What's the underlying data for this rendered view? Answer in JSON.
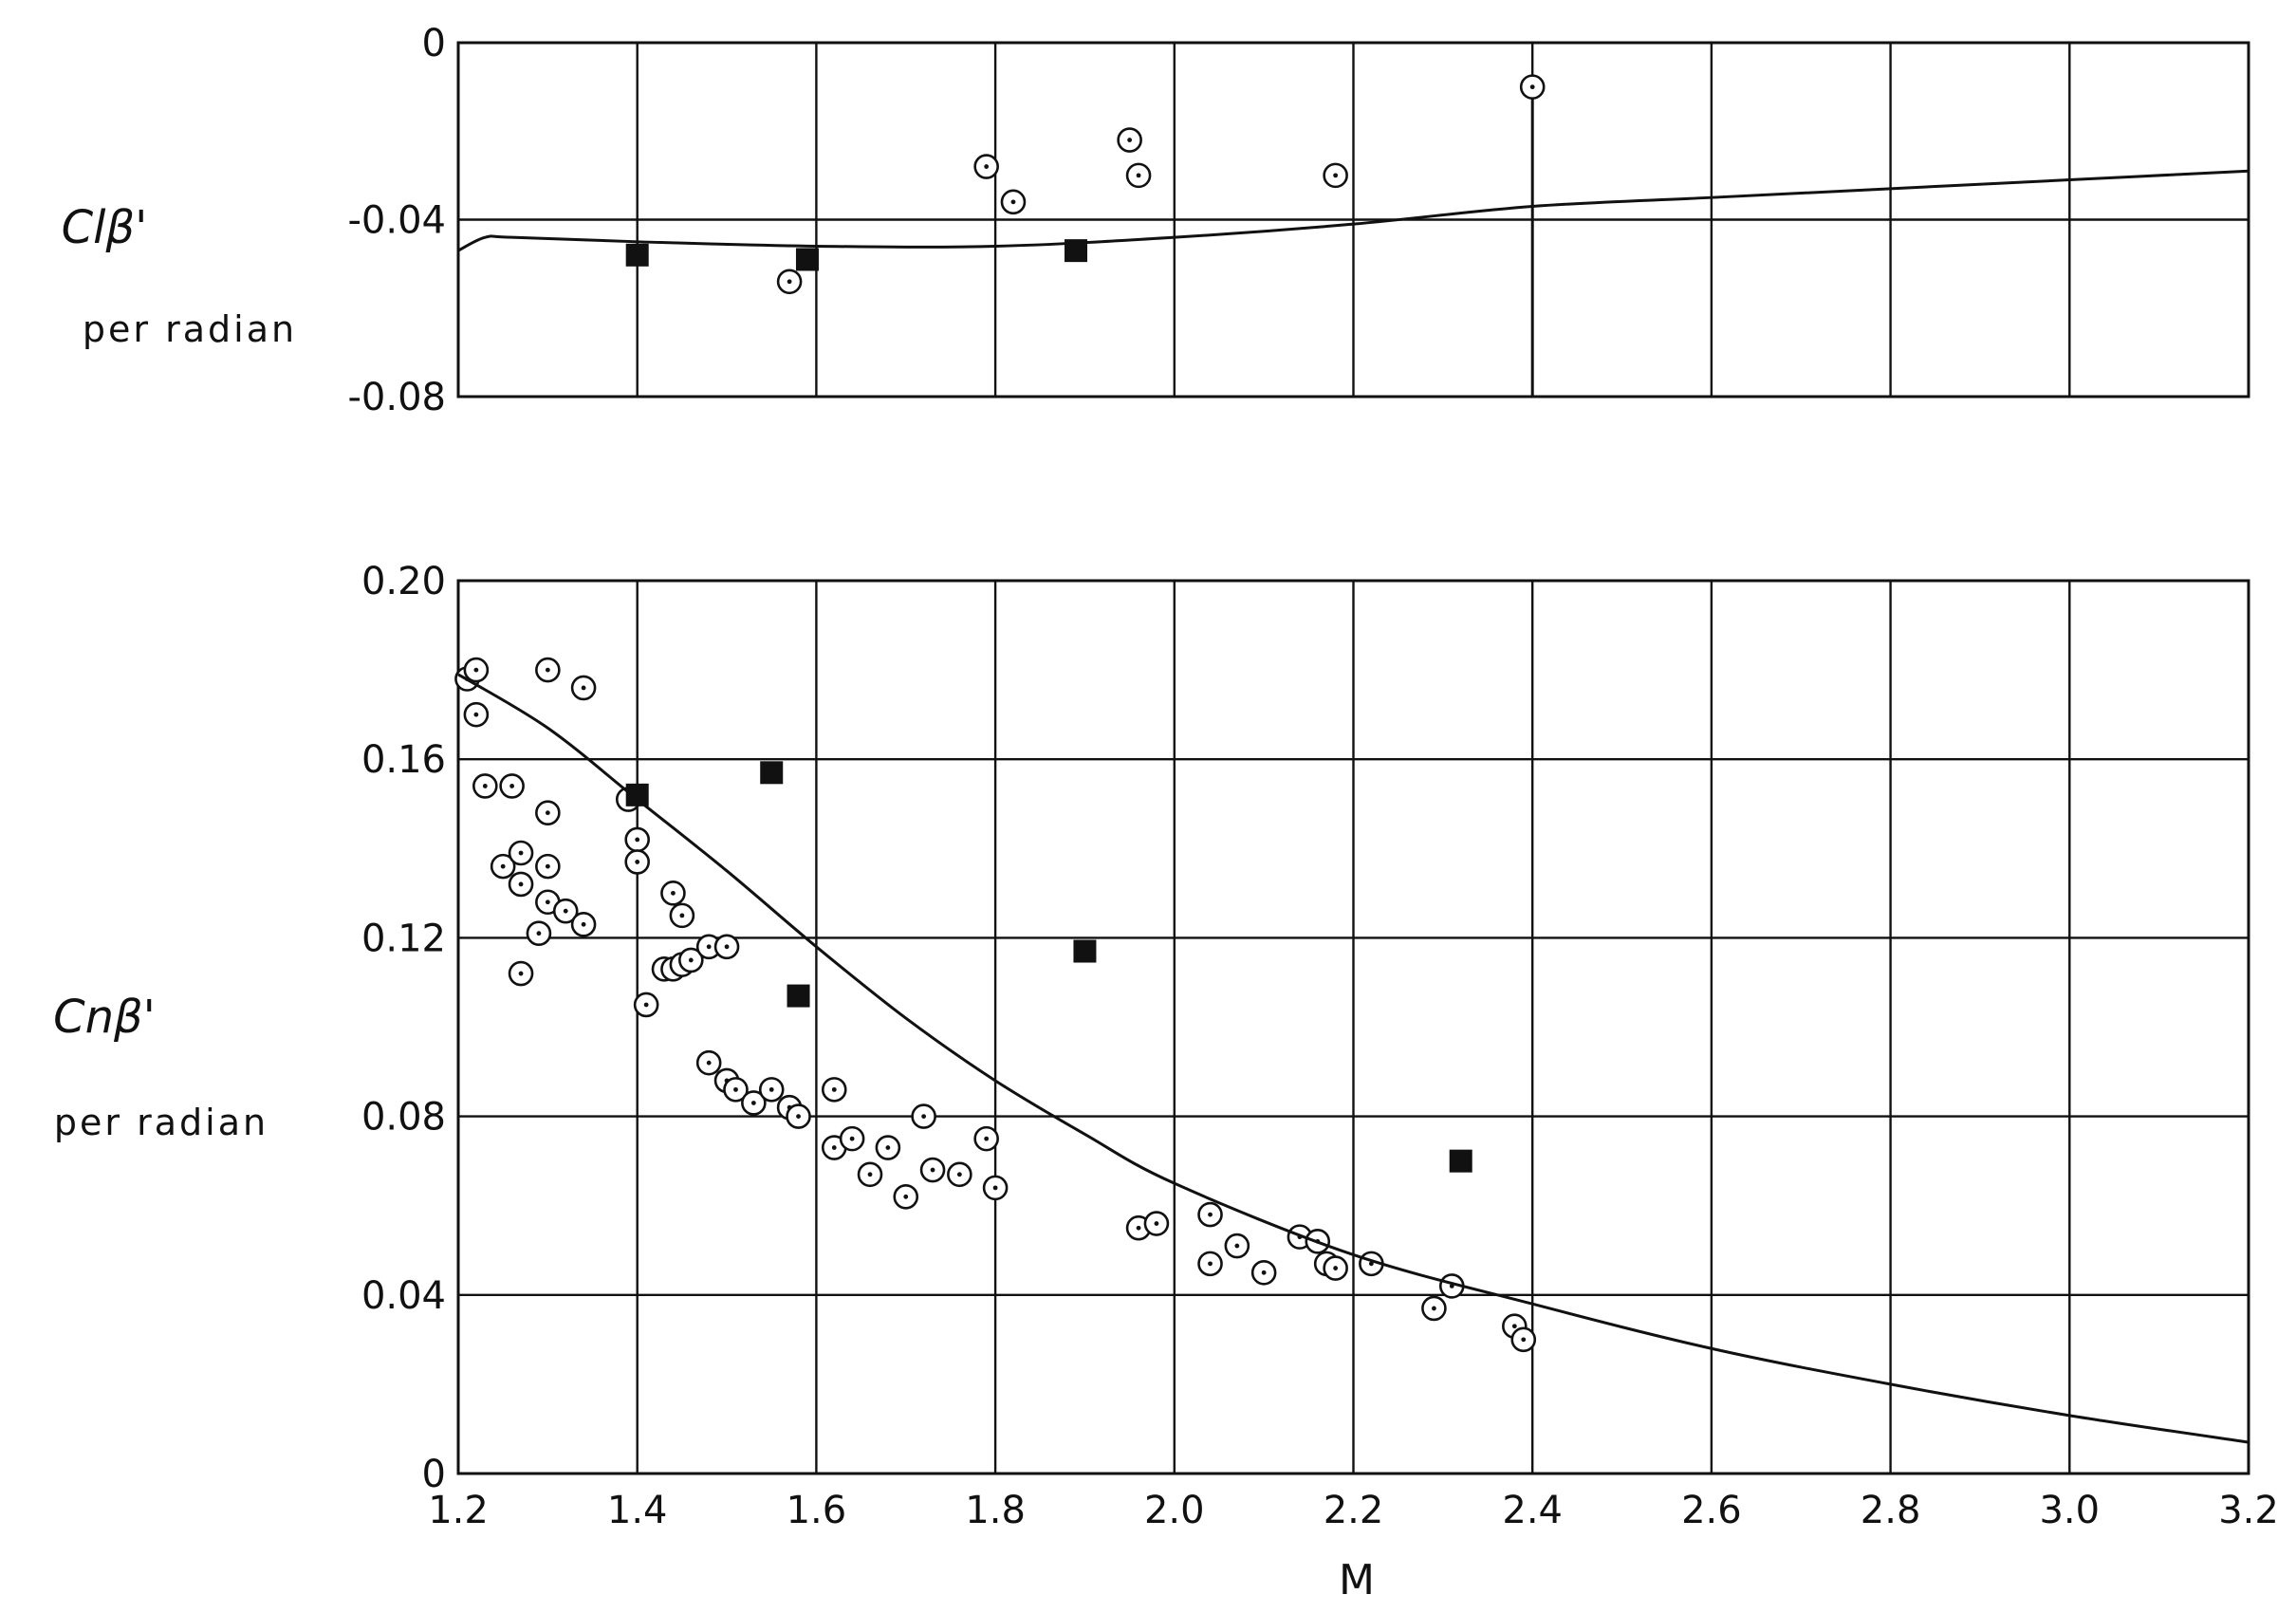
{
  "chart_data": [
    {
      "type": "scatter",
      "ylabel_main": "Clβ'",
      "ylabel_sub": "per radian",
      "xlabel": "",
      "xlim": [
        1.2,
        3.2
      ],
      "ylim": [
        -0.08,
        0
      ],
      "x_ticks": [
        1.2,
        1.4,
        1.6,
        1.8,
        2.0,
        2.2,
        2.4,
        2.6,
        2.8,
        3.0,
        3.2
      ],
      "y_ticks": [
        0,
        -0.04,
        -0.08
      ],
      "y_tick_labels": [
        "0",
        "-0.04",
        "-0.08"
      ],
      "grid": true,
      "series": [
        {
          "marker": "open-circle",
          "points": [
            [
              1.57,
              -0.054
            ],
            [
              1.79,
              -0.028
            ],
            [
              1.82,
              -0.036
            ],
            [
              1.95,
              -0.022
            ],
            [
              1.96,
              -0.03
            ],
            [
              2.18,
              -0.03
            ],
            [
              2.4,
              -0.01
            ]
          ]
        },
        {
          "marker": "filled-square",
          "points": [
            [
              1.4,
              -0.048
            ],
            [
              1.59,
              -0.049
            ],
            [
              1.89,
              -0.047
            ]
          ]
        },
        {
          "marker": "line",
          "points": [
            [
              1.2,
              -0.047
            ],
            [
              1.23,
              -0.044
            ],
            [
              1.26,
              -0.044
            ],
            [
              1.4,
              -0.045
            ],
            [
              1.6,
              -0.046
            ],
            [
              1.8,
              -0.046
            ],
            [
              2.0,
              -0.044
            ],
            [
              2.2,
              -0.041
            ],
            [
              2.4,
              -0.037
            ],
            [
              2.6,
              -0.035
            ],
            [
              2.8,
              -0.033
            ],
            [
              3.0,
              -0.031
            ],
            [
              3.2,
              -0.029
            ]
          ]
        }
      ],
      "annotations": [
        {
          "type": "vertical-line",
          "x": 2.4,
          "from": -0.08,
          "to": -0.01
        }
      ]
    },
    {
      "type": "scatter",
      "ylabel_main": "Cnβ'",
      "ylabel_sub": "per radian",
      "xlabel": "M",
      "xlim": [
        1.2,
        3.2
      ],
      "ylim": [
        0,
        0.2
      ],
      "x_ticks": [
        1.2,
        1.4,
        1.6,
        1.8,
        2.0,
        2.2,
        2.4,
        2.6,
        2.8,
        3.0,
        3.2
      ],
      "x_tick_labels": [
        "1.2",
        "1.4",
        "1.6",
        "1.8",
        "2.0",
        "2.2",
        "2.4",
        "2.6",
        "2.8",
        "3.0",
        "3.2"
      ],
      "y_ticks": [
        0,
        0.04,
        0.08,
        0.12,
        0.16,
        0.2
      ],
      "y_tick_labels": [
        "0",
        "0.04",
        "0.08",
        "0.12",
        "0.16",
        "0.20"
      ],
      "grid": true,
      "series": [
        {
          "marker": "open-circle",
          "points": [
            [
              1.21,
              0.178
            ],
            [
              1.22,
              0.18
            ],
            [
              1.22,
              0.17
            ],
            [
              1.23,
              0.154
            ],
            [
              1.26,
              0.154
            ],
            [
              1.3,
              0.18
            ],
            [
              1.34,
              0.176
            ],
            [
              1.3,
              0.148
            ],
            [
              1.25,
              0.136
            ],
            [
              1.27,
              0.139
            ],
            [
              1.27,
              0.132
            ],
            [
              1.3,
              0.136
            ],
            [
              1.3,
              0.128
            ],
            [
              1.32,
              0.126
            ],
            [
              1.34,
              0.123
            ],
            [
              1.29,
              0.121
            ],
            [
              1.27,
              0.112
            ],
            [
              1.39,
              0.151
            ],
            [
              1.4,
              0.142
            ],
            [
              1.4,
              0.137
            ],
            [
              1.41,
              0.105
            ],
            [
              1.44,
              0.13
            ],
            [
              1.45,
              0.125
            ],
            [
              1.43,
              0.113
            ],
            [
              1.44,
              0.113
            ],
            [
              1.45,
              0.114
            ],
            [
              1.46,
              0.115
            ],
            [
              1.48,
              0.118
            ],
            [
              1.5,
              0.118
            ],
            [
              1.48,
              0.092
            ],
            [
              1.5,
              0.088
            ],
            [
              1.51,
              0.086
            ],
            [
              1.53,
              0.083
            ],
            [
              1.55,
              0.086
            ],
            [
              1.57,
              0.082
            ],
            [
              1.58,
              0.08
            ],
            [
              1.62,
              0.086
            ],
            [
              1.62,
              0.073
            ],
            [
              1.64,
              0.075
            ],
            [
              1.66,
              0.067
            ],
            [
              1.68,
              0.073
            ],
            [
              1.7,
              0.062
            ],
            [
              1.72,
              0.08
            ],
            [
              1.73,
              0.068
            ],
            [
              1.76,
              0.067
            ],
            [
              1.79,
              0.075
            ],
            [
              1.8,
              0.064
            ],
            [
              1.96,
              0.055
            ],
            [
              1.98,
              0.056
            ],
            [
              2.04,
              0.058
            ],
            [
              2.04,
              0.047
            ],
            [
              2.07,
              0.051
            ],
            [
              2.1,
              0.045
            ],
            [
              2.14,
              0.053
            ],
            [
              2.16,
              0.052
            ],
            [
              2.17,
              0.047
            ],
            [
              2.18,
              0.046
            ],
            [
              2.22,
              0.047
            ],
            [
              2.29,
              0.037
            ],
            [
              2.31,
              0.042
            ],
            [
              2.38,
              0.033
            ],
            [
              2.39,
              0.03
            ]
          ]
        },
        {
          "marker": "filled-square",
          "points": [
            [
              1.4,
              0.152
            ],
            [
              1.55,
              0.157
            ],
            [
              1.58,
              0.107
            ],
            [
              1.9,
              0.117
            ],
            [
              2.32,
              0.07
            ]
          ]
        },
        {
          "marker": "line",
          "points": [
            [
              1.2,
              0.179
            ],
            [
              1.3,
              0.167
            ],
            [
              1.4,
              0.151
            ],
            [
              1.5,
              0.135
            ],
            [
              1.6,
              0.118
            ],
            [
              1.7,
              0.102
            ],
            [
              1.8,
              0.088
            ],
            [
              1.9,
              0.076
            ],
            [
              2.0,
              0.065
            ],
            [
              2.2,
              0.049
            ],
            [
              2.4,
              0.038
            ],
            [
              2.6,
              0.028
            ],
            [
              2.8,
              0.02
            ],
            [
              3.0,
              0.013
            ],
            [
              3.2,
              0.007
            ]
          ]
        }
      ]
    }
  ]
}
